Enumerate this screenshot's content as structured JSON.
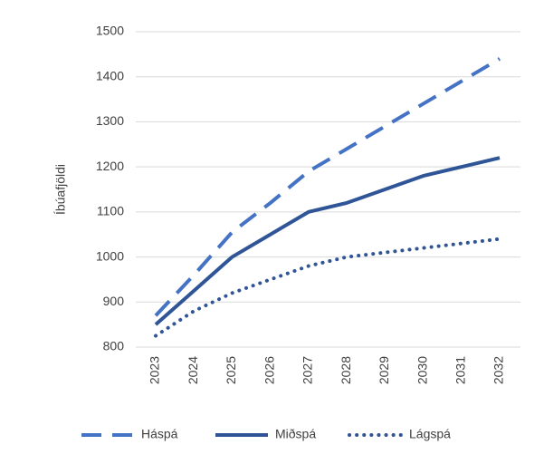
{
  "chart_data": {
    "type": "line",
    "ylabel": "Íbúafjöldi",
    "x": [
      2023,
      2024,
      2025,
      2026,
      2027,
      2028,
      2029,
      2030,
      2031,
      2032
    ],
    "xlim": [
      2023,
      2032
    ],
    "series": [
      {
        "name": "Háspá",
        "color": "#4472c4",
        "dash": "dashed",
        "values": [
          870,
          960,
          1055,
          1120,
          1190,
          1240,
          1290,
          1340,
          1390,
          1440
        ]
      },
      {
        "name": "Miðspá",
        "color": "#2f5597",
        "dash": "solid",
        "values": [
          850,
          925,
          1000,
          1050,
          1100,
          1120,
          1150,
          1180,
          1200,
          1220
        ]
      },
      {
        "name": "Lágspá",
        "color": "#2f5597",
        "dash": "dotted",
        "values": [
          825,
          880,
          920,
          950,
          980,
          1000,
          1010,
          1020,
          1030,
          1040
        ]
      }
    ],
    "ylim": [
      800,
      1500
    ],
    "yticks": [
      800,
      900,
      1000,
      1100,
      1200,
      1300,
      1400,
      1500
    ],
    "grid": true,
    "legend": "bottom"
  }
}
